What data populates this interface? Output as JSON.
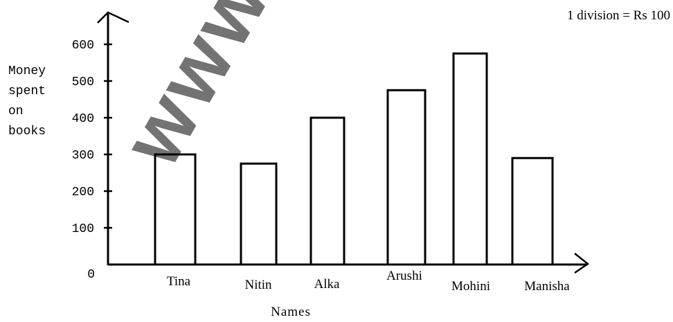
{
  "watermark": "www.e",
  "note": "1 division = Rs 100",
  "chart_data": {
    "type": "bar",
    "categories": [
      "Tina",
      "Nitin",
      "Alka",
      "Arushi",
      "Mohini",
      "Manisha"
    ],
    "values": [
      300,
      275,
      400,
      475,
      575,
      290
    ],
    "ylabel": [
      "Money",
      "spent",
      "on",
      "books"
    ],
    "xlabel": "Names",
    "yticks": [
      0,
      100,
      200,
      300,
      400,
      500,
      600
    ],
    "ylim": [
      0,
      600
    ],
    "grid": false
  }
}
